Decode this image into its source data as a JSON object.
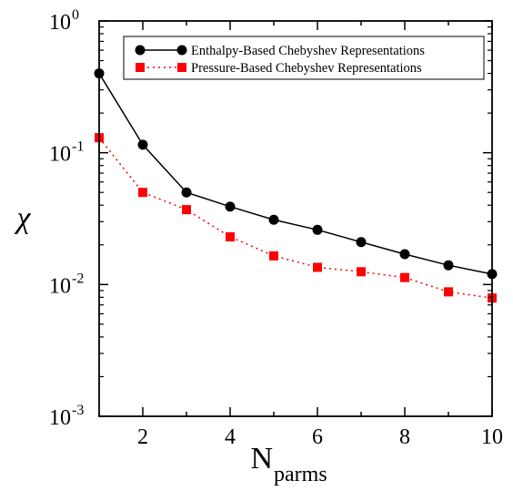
{
  "chart_data": {
    "type": "line",
    "title": "",
    "xlabel": {
      "main": "N",
      "sub": "parms"
    },
    "ylabel": "χ",
    "xlim": [
      1,
      10
    ],
    "ylim": [
      0.001,
      1
    ],
    "yscale": "log",
    "xticks": [
      2,
      4,
      6,
      8,
      10
    ],
    "yticks": [
      {
        "base": "10",
        "exp": "0",
        "value": 1
      },
      {
        "base": "10",
        "exp": "-1",
        "value": 0.1
      },
      {
        "base": "10",
        "exp": "-2",
        "value": 0.01
      },
      {
        "base": "10",
        "exp": "-3",
        "value": 0.001
      }
    ],
    "grid": false,
    "legend_position": "top-right",
    "x": [
      1,
      2,
      3,
      4,
      5,
      6,
      7,
      8,
      9,
      10
    ],
    "series": [
      {
        "name": "Enthalpy-Based Chebyshev Representations",
        "color": "#000000",
        "marker": "circle",
        "line": "solid",
        "values": [
          0.4,
          0.115,
          0.05,
          0.039,
          0.031,
          0.026,
          0.021,
          0.017,
          0.014,
          0.012
        ]
      },
      {
        "name": "Pressure-Based Chebyshev Representations",
        "color": "#ff0000",
        "marker": "square",
        "line": "dotted",
        "values": [
          0.13,
          0.05,
          0.037,
          0.023,
          0.0165,
          0.0135,
          0.0125,
          0.0113,
          0.0088,
          0.0079
        ]
      }
    ]
  }
}
